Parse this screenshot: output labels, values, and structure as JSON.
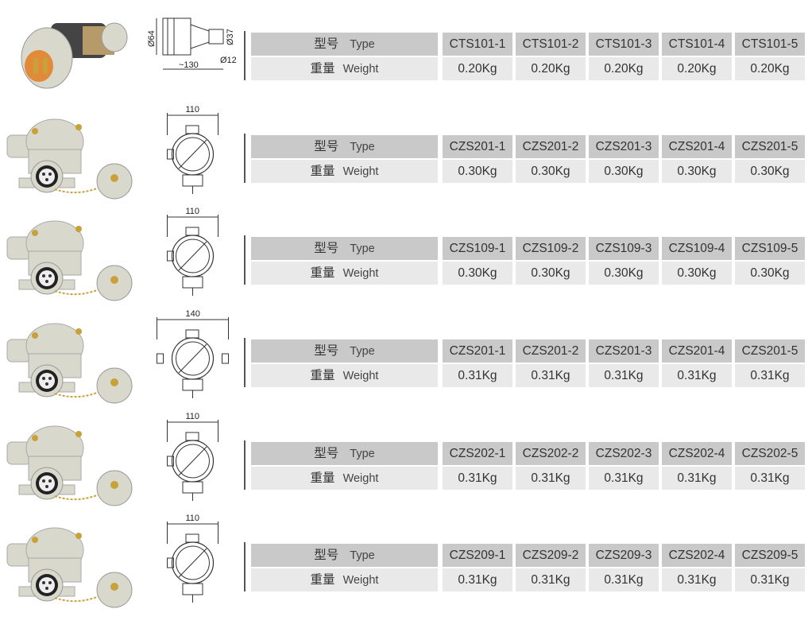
{
  "labels": {
    "type_cn": "型号",
    "type_en": "Type",
    "weight_cn": "重量",
    "weight_en": "Weight"
  },
  "colors": {
    "type_row": "#c9c9c9",
    "weight_row": "#e9e9e9",
    "product_body": "#d8d8cc"
  },
  "sections": [
    {
      "product": "plug",
      "dimensions": [
        "Ø64",
        "Ø37",
        "Ø12",
        "~130"
      ],
      "models": [
        "CTS101-1",
        "CTS101-2",
        "CTS101-3",
        "CTS101-4",
        "CTS101-5"
      ],
      "weights": [
        "0.20Kg",
        "0.20Kg",
        "0.20Kg",
        "0.20Kg",
        "0.20Kg"
      ]
    },
    {
      "product": "socket",
      "dimensions": [
        "110"
      ],
      "models": [
        "CZS201-1",
        "CZS201-2",
        "CZS201-3",
        "CZS201-4",
        "CZS201-5"
      ],
      "weights": [
        "0.30Kg",
        "0.30Kg",
        "0.30Kg",
        "0.30Kg",
        "0.30Kg"
      ]
    },
    {
      "product": "socket",
      "dimensions": [
        "110"
      ],
      "models": [
        "CZS109-1",
        "CZS109-2",
        "CZS109-3",
        "CZS109-4",
        "CZS109-5"
      ],
      "weights": [
        "0.30Kg",
        "0.30Kg",
        "0.30Kg",
        "0.30Kg",
        "0.30Kg"
      ]
    },
    {
      "product": "socket",
      "dimensions": [
        "140"
      ],
      "models": [
        "CZS201-1",
        "CZS201-2",
        "CZS201-3",
        "CZS201-4",
        "CZS201-5"
      ],
      "weights": [
        "0.31Kg",
        "0.31Kg",
        "0.31Kg",
        "0.31Kg",
        "0.31Kg"
      ]
    },
    {
      "product": "socket",
      "dimensions": [
        "110"
      ],
      "models": [
        "CZS202-1",
        "CZS202-2",
        "CZS202-3",
        "CZS202-4",
        "CZS202-5"
      ],
      "weights": [
        "0.31Kg",
        "0.31Kg",
        "0.31Kg",
        "0.31Kg",
        "0.31Kg"
      ]
    },
    {
      "product": "socket",
      "dimensions": [
        "110"
      ],
      "models": [
        "CZS209-1",
        "CZS209-2",
        "CZS209-3",
        "CZS202-4",
        "CZS209-5"
      ],
      "weights": [
        "0.31Kg",
        "0.31Kg",
        "0.31Kg",
        "0.31Kg",
        "0.31Kg"
      ]
    }
  ]
}
